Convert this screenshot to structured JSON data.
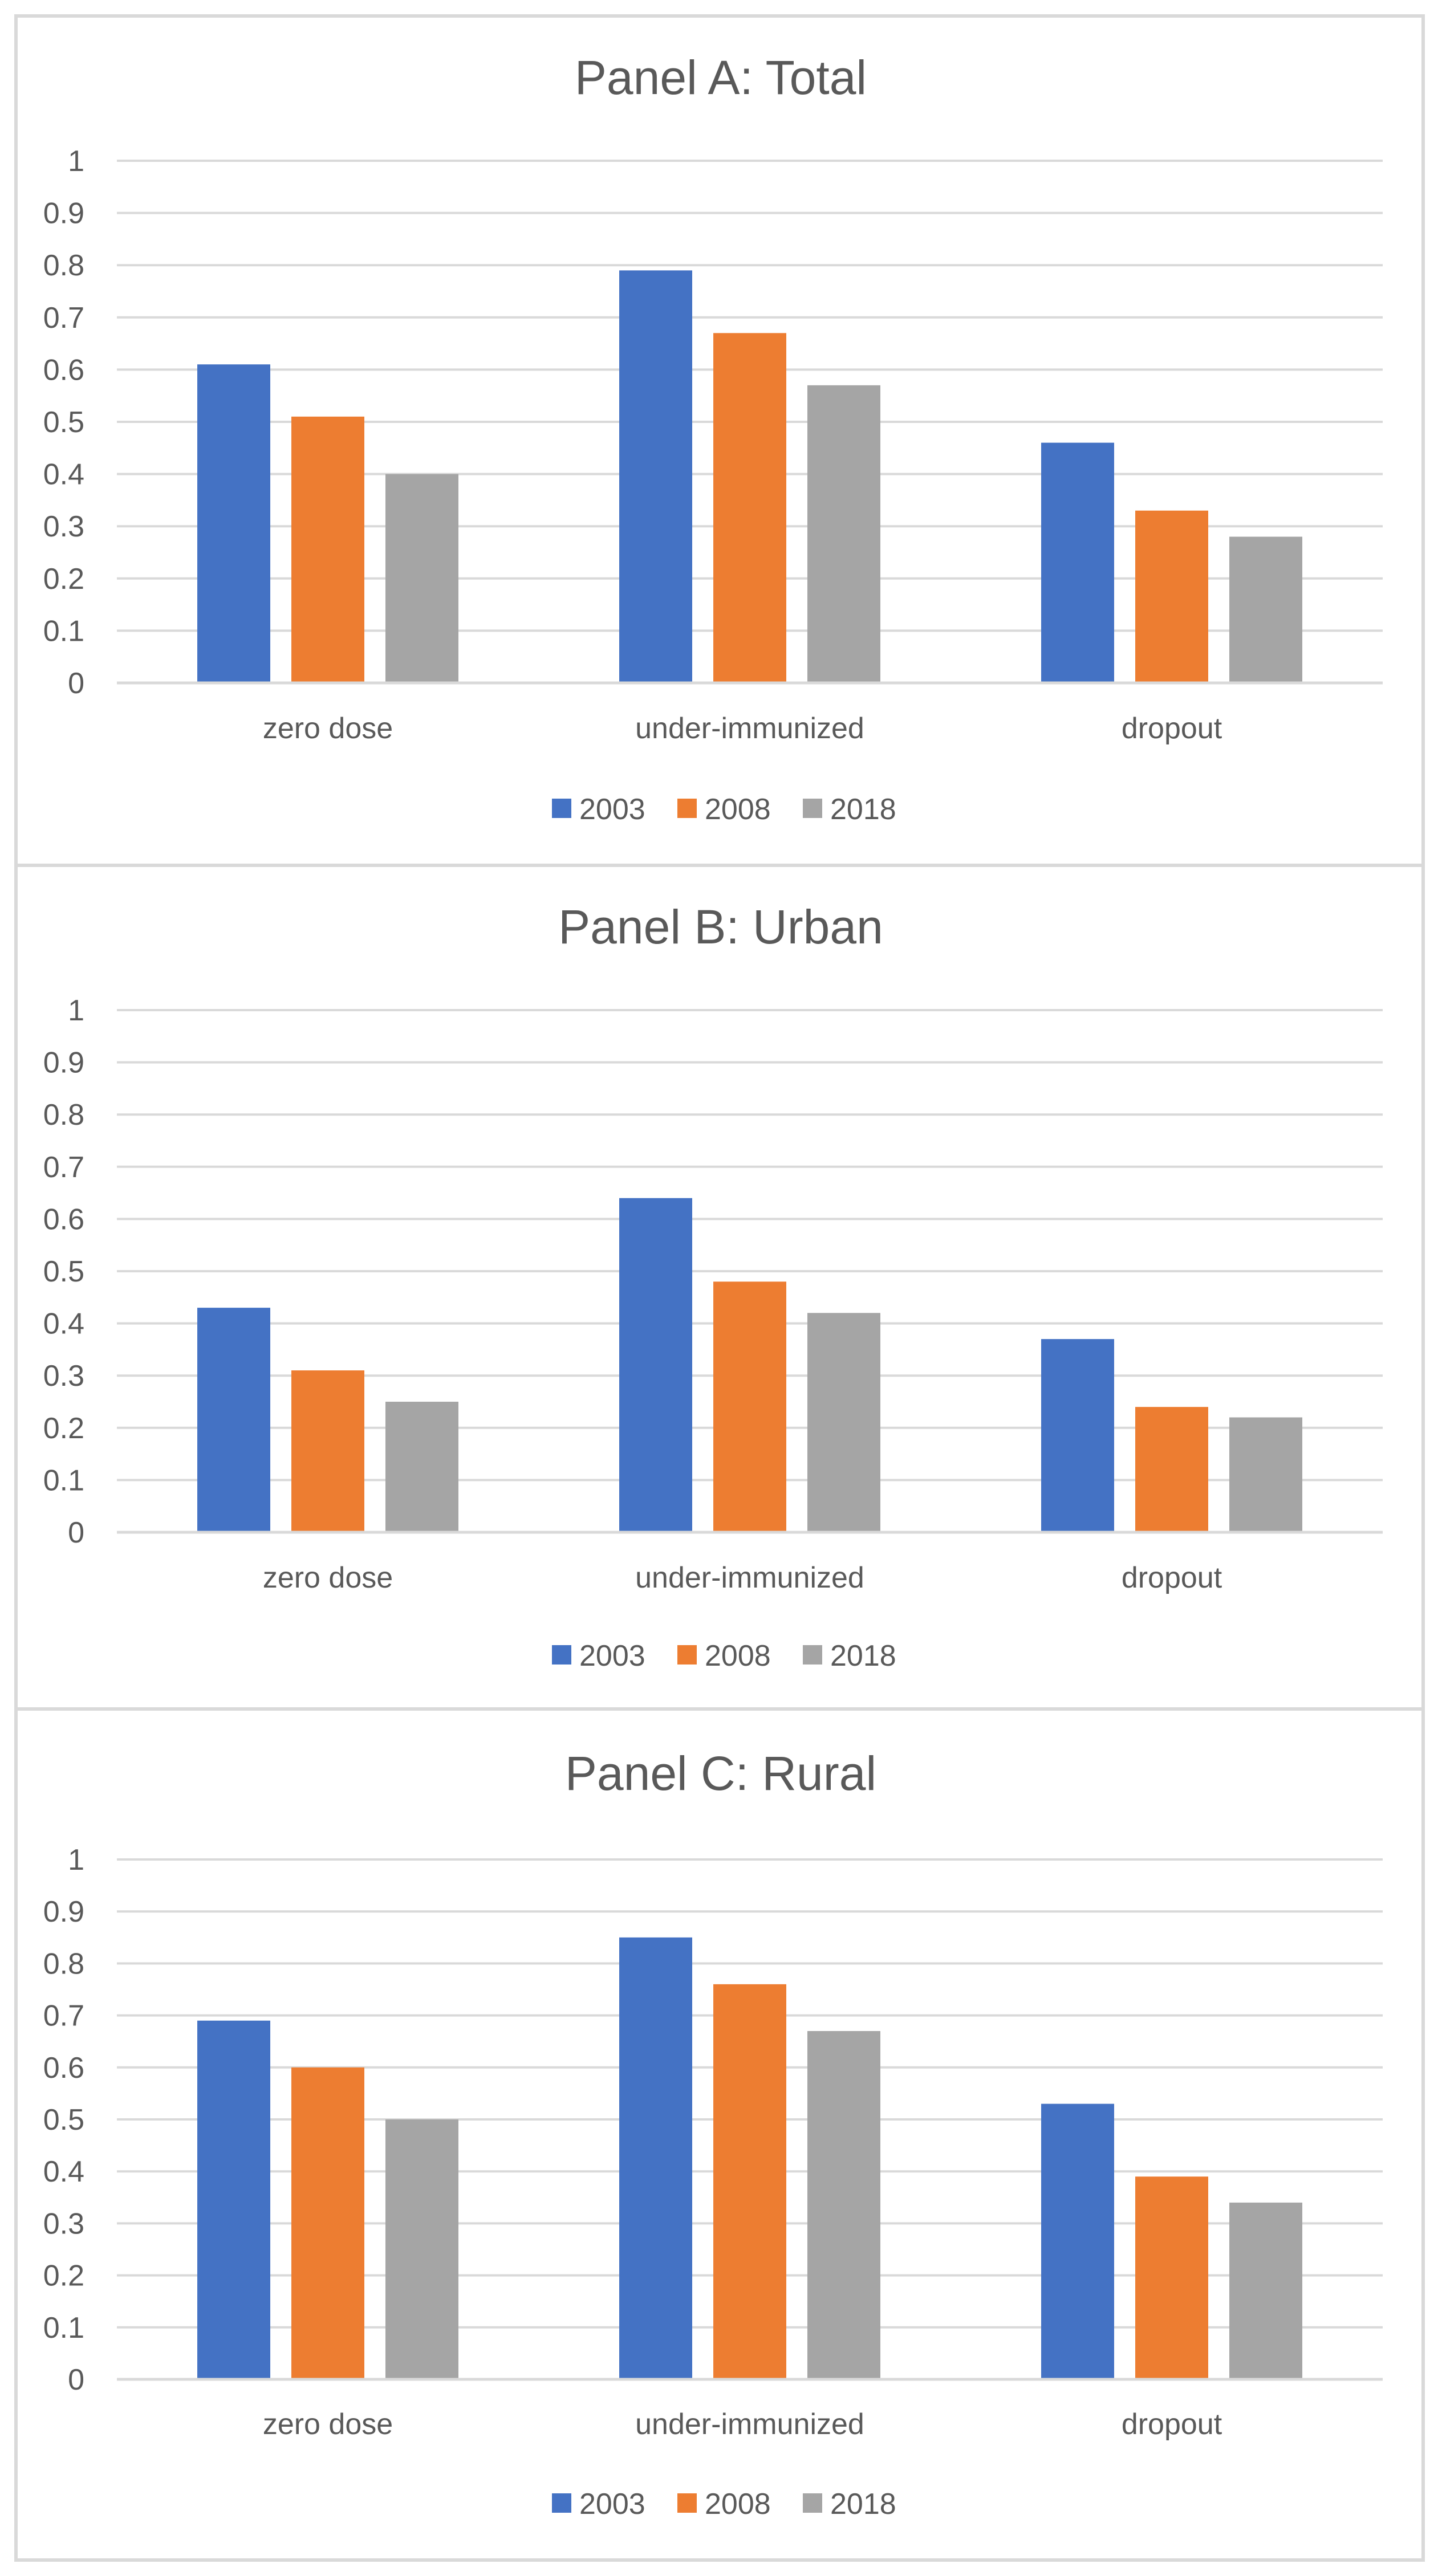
{
  "colors": {
    "series_2003": "#4472c4",
    "series_2008": "#ed7d31",
    "series_2018": "#a5a5a5"
  },
  "chart_data": [
    {
      "type": "bar",
      "title": "Panel A: Total",
      "categories": [
        "zero dose",
        "under-immunized",
        "dropout"
      ],
      "series": [
        {
          "name": "2003",
          "values": [
            0.61,
            0.79,
            0.46
          ]
        },
        {
          "name": "2008",
          "values": [
            0.51,
            0.67,
            0.33
          ]
        },
        {
          "name": "2018",
          "values": [
            0.4,
            0.57,
            0.28
          ]
        }
      ],
      "xlabel": "",
      "ylabel": "",
      "ylim": [
        0,
        1
      ],
      "yticks": [
        "0",
        "0.1",
        "0.2",
        "0.3",
        "0.4",
        "0.5",
        "0.6",
        "0.7",
        "0.8",
        "0.9",
        "1"
      ],
      "grid": true,
      "legend": "bottom"
    },
    {
      "type": "bar",
      "title": "Panel B: Urban",
      "categories": [
        "zero dose",
        "under-immunized",
        "dropout"
      ],
      "series": [
        {
          "name": "2003",
          "values": [
            0.43,
            0.64,
            0.37
          ]
        },
        {
          "name": "2008",
          "values": [
            0.31,
            0.48,
            0.24
          ]
        },
        {
          "name": "2018",
          "values": [
            0.25,
            0.42,
            0.22
          ]
        }
      ],
      "xlabel": "",
      "ylabel": "",
      "ylim": [
        0,
        1
      ],
      "yticks": [
        "0",
        "0.1",
        "0.2",
        "0.3",
        "0.4",
        "0.5",
        "0.6",
        "0.7",
        "0.8",
        "0.9",
        "1"
      ],
      "grid": true,
      "legend": "bottom"
    },
    {
      "type": "bar",
      "title": "Panel C: Rural",
      "categories": [
        "zero dose",
        "under-immunized",
        "dropout"
      ],
      "series": [
        {
          "name": "2003",
          "values": [
            0.69,
            0.85,
            0.53
          ]
        },
        {
          "name": "2008",
          "values": [
            0.6,
            0.76,
            0.39
          ]
        },
        {
          "name": "2018",
          "values": [
            0.5,
            0.67,
            0.34
          ]
        }
      ],
      "xlabel": "",
      "ylabel": "",
      "ylim": [
        0,
        1
      ],
      "yticks": [
        "0",
        "0.1",
        "0.2",
        "0.3",
        "0.4",
        "0.5",
        "0.6",
        "0.7",
        "0.8",
        "0.9",
        "1"
      ],
      "grid": true,
      "legend": "bottom"
    }
  ]
}
